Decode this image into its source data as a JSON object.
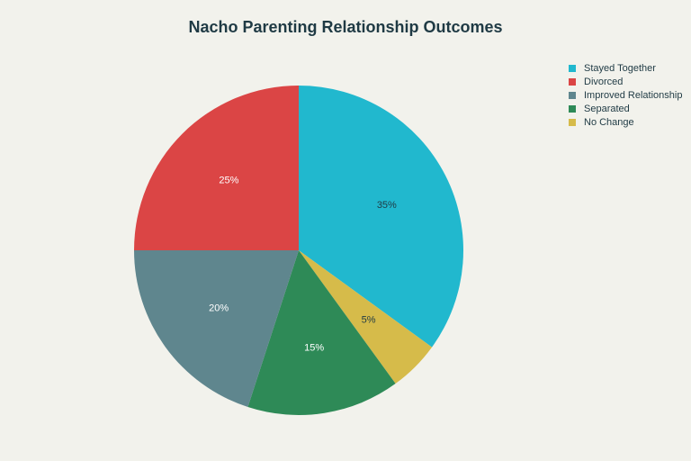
{
  "chart_data": {
    "type": "pie",
    "title": "Nacho Parenting Relationship Outcomes",
    "legend_position": "top-right",
    "slices": [
      {
        "label": "Stayed Together",
        "value": 35,
        "display": "35%",
        "color": "#21b8ce",
        "label_color": "#1f3a44"
      },
      {
        "label": "No Change",
        "value": 5,
        "display": "5%",
        "color": "#d6bb4a",
        "label_color": "#1f3a44"
      },
      {
        "label": "Separated",
        "value": 15,
        "display": "15%",
        "color": "#2e8a57",
        "label_color": "#ffffff"
      },
      {
        "label": "Improved Relationship",
        "value": 20,
        "display": "20%",
        "color": "#5f868e",
        "label_color": "#ffffff"
      },
      {
        "label": "Divorced",
        "value": 25,
        "display": "25%",
        "color": "#db4545",
        "label_color": "#ffffff"
      }
    ],
    "legend": [
      {
        "label": "Stayed Together",
        "color": "#21b8ce"
      },
      {
        "label": "Divorced",
        "color": "#db4545"
      },
      {
        "label": "Improved Relationship",
        "color": "#5f868e"
      },
      {
        "label": "Separated",
        "color": "#2e8a57"
      },
      {
        "label": "No Change",
        "color": "#d6bb4a"
      }
    ]
  }
}
